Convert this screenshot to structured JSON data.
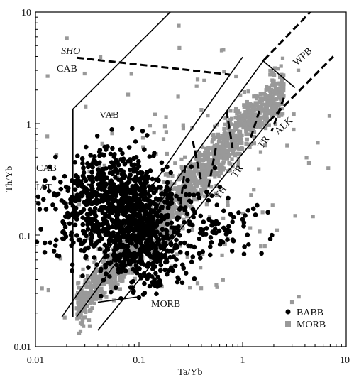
{
  "chart_data": {
    "type": "scatter",
    "xlabel": "Ta/Yb",
    "ylabel": "Th/Yb",
    "x_scale": "log",
    "y_scale": "log",
    "xlim": [
      0.01,
      10
    ],
    "ylim": [
      0.01,
      10
    ],
    "x_ticks": [
      "0.01",
      "0.1",
      "1",
      "10"
    ],
    "y_ticks": [
      "0.01",
      "0.1",
      "1",
      "10"
    ],
    "legend": {
      "placement": "bottom-right",
      "entries": [
        "BABB",
        "MORB"
      ]
    },
    "series": [
      {
        "name": "BABB",
        "marker": "circle",
        "color": "#000000",
        "clusters": [
          {
            "cx": 0.06,
            "cy": 0.18,
            "sx": 0.55,
            "sy": 0.45,
            "n": 900
          },
          {
            "cx": 0.12,
            "cy": 0.08,
            "sx": 0.35,
            "sy": 0.35,
            "n": 350
          },
          {
            "cx": 0.6,
            "cy": 0.12,
            "sx": 0.35,
            "sy": 0.3,
            "n": 70
          }
        ]
      },
      {
        "name": "MORB",
        "marker": "square",
        "color": "#999999",
        "trend": {
          "x_from": 0.025,
          "x_to": 2.5,
          "slope": 1.0,
          "intercept_ratio": 0.9,
          "spread": 0.22,
          "n": 1600
        },
        "scatter": {
          "cx": 0.3,
          "cy": 0.3,
          "sx": 0.7,
          "sy": 0.6,
          "n": 180
        }
      }
    ],
    "annotations": [
      "SHO",
      "CAB",
      "VAB",
      "CAB",
      "IAT",
      "WPB",
      "ALK",
      "TR",
      "TR",
      "TH",
      "MORB"
    ],
    "boundaries": {
      "vab_field": [
        [
          0.023,
          0.0185
        ],
        [
          0.023,
          1.35
        ],
        [
          0.2,
          10
        ]
      ],
      "vab_right": [
        [
          0.018,
          0.0185
        ],
        [
          0.3,
          0.82
        ],
        [
          1.0,
          3.95
        ]
      ],
      "mantle_array_upper_inner": [
        [
          0.025,
          0.0185
        ],
        [
          1.6,
          3.7
        ]
      ],
      "mantle_array_lower_inner": [
        [
          0.04,
          0.014
        ],
        [
          1.8,
          1.05
        ]
      ],
      "mantle_array_upper_dashed": [
        [
          1.6,
          3.7
        ],
        [
          4.5,
          10
        ]
      ],
      "mantle_array_lower_dashed": [
        [
          1.8,
          1.05
        ],
        [
          7.5,
          4
        ]
      ],
      "sho_cab_divider": [
        [
          0.025,
          3.9
        ],
        [
          0.75,
          2.75
        ]
      ],
      "cab_iat_divider": [
        [
          0.025,
          0.29
        ],
        [
          0.17,
          0.24
        ]
      ],
      "wpb_bottom": [
        [
          1.55,
          3.7
        ],
        [
          3.2,
          2.1
        ]
      ],
      "alk_tr_divider": [
        [
          1.45,
          1.3
        ],
        [
          1.2,
          0.75
        ]
      ],
      "alk_tr_divider_long": [
        [
          2.5,
          1.7
        ],
        [
          1.9,
          0.85
        ]
      ],
      "tr_tr_divider_upper": [
        [
          0.7,
          1.3
        ],
        [
          0.8,
          0.6
        ]
      ],
      "tr_tr_divider_lower": [
        [
          0.55,
          0.6
        ],
        [
          0.45,
          0.22
        ]
      ],
      "th_tr_divider": [
        [
          0.33,
          0.7
        ],
        [
          0.4,
          0.3
        ]
      ],
      "th_tr_divider_lower": [
        [
          0.28,
          0.42
        ],
        [
          0.25,
          0.18
        ]
      ],
      "morb_leader": [
        [
          0.04,
          0.025
        ],
        [
          0.1,
          0.028
        ]
      ]
    }
  }
}
